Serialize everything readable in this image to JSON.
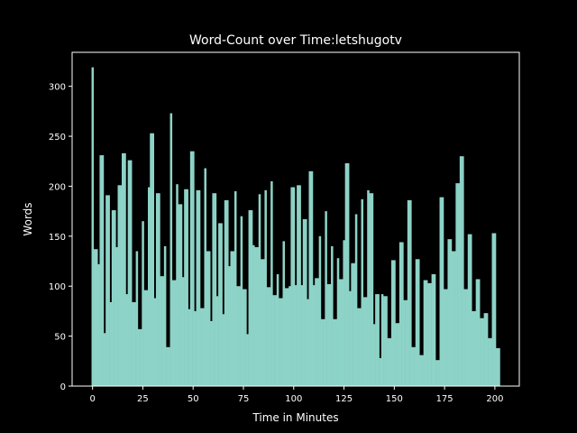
{
  "chart_data": {
    "type": "bar",
    "title": "Word-Count over Time:letshugotv",
    "xlabel": "Time in Minutes",
    "ylabel": "Words",
    "color": "#8dd3c7",
    "x": [
      0,
      1,
      2,
      3,
      4,
      5,
      6,
      7,
      8,
      9,
      10,
      11,
      12,
      13,
      14,
      15,
      16,
      17,
      18,
      19,
      20,
      21,
      22,
      23,
      24,
      25,
      26,
      27,
      28,
      29,
      30,
      31,
      32,
      33,
      34,
      35,
      36,
      37,
      38,
      39,
      40,
      41,
      42,
      43,
      44,
      45,
      46,
      47,
      48,
      49,
      50,
      51,
      52,
      53,
      54,
      55,
      56,
      57,
      58,
      59,
      60,
      61,
      62,
      63,
      64,
      65,
      66,
      67,
      68,
      69,
      70,
      71,
      72,
      73,
      74,
      75,
      76,
      77,
      78,
      79,
      80,
      81,
      82,
      83,
      84,
      85,
      86,
      87,
      88,
      89,
      90,
      91,
      92,
      93,
      94,
      95,
      96,
      97,
      98,
      99,
      100,
      101,
      102,
      103,
      104,
      105,
      106,
      107,
      108,
      109,
      110,
      111,
      112,
      113,
      114,
      115,
      116,
      117,
      118,
      119,
      120,
      121,
      122,
      123,
      124,
      125,
      126,
      127,
      128,
      129,
      130,
      131,
      132,
      133,
      134,
      135,
      136,
      137,
      138,
      139,
      140,
      141,
      142,
      143,
      144,
      145,
      146,
      147,
      148,
      149,
      150,
      151,
      152,
      153,
      154,
      155,
      156,
      157,
      158,
      159,
      160,
      161,
      162,
      163,
      164,
      165,
      166,
      167,
      168,
      169,
      170,
      171,
      172,
      173,
      174,
      175,
      176,
      177,
      178,
      179,
      180,
      181,
      182,
      183,
      184,
      185,
      186,
      187,
      188,
      189,
      190,
      191,
      192,
      193,
      194,
      195,
      196,
      197,
      198,
      199,
      200,
      201,
      202
    ],
    "values": [
      319,
      137,
      137,
      122,
      231,
      231,
      53,
      191,
      191,
      84,
      176,
      176,
      139,
      201,
      201,
      233,
      233,
      92,
      226,
      226,
      84,
      84,
      135,
      57,
      57,
      165,
      96,
      96,
      199,
      253,
      253,
      88,
      193,
      193,
      110,
      110,
      140,
      39,
      39,
      273,
      106,
      106,
      202,
      182,
      182,
      109,
      197,
      197,
      77,
      235,
      235,
      75,
      196,
      196,
      78,
      78,
      218,
      135,
      135,
      65,
      193,
      193,
      90,
      163,
      163,
      72,
      186,
      186,
      120,
      135,
      135,
      195,
      100,
      100,
      170,
      97,
      97,
      52,
      176,
      176,
      141,
      139,
      139,
      192,
      127,
      127,
      196,
      99,
      99,
      205,
      91,
      91,
      112,
      88,
      88,
      145,
      98,
      98,
      100,
      199,
      199,
      101,
      201,
      201,
      101,
      167,
      167,
      87,
      215,
      215,
      101,
      108,
      108,
      150,
      67,
      67,
      175,
      102,
      102,
      140,
      67,
      67,
      128,
      107,
      107,
      146,
      223,
      223,
      95,
      123,
      123,
      172,
      78,
      78,
      187,
      89,
      89,
      196,
      193,
      193,
      62,
      92,
      92,
      28,
      92,
      90,
      90,
      48,
      48,
      126,
      126,
      63,
      63,
      144,
      144,
      86,
      86,
      186,
      186,
      39,
      39,
      127,
      127,
      31,
      31,
      106,
      106,
      103,
      103,
      112,
      112,
      26,
      26,
      189,
      189,
      97,
      97,
      147,
      147,
      135,
      135,
      203,
      203,
      230,
      230,
      97,
      97,
      152,
      152,
      75,
      75,
      107,
      107,
      68,
      68,
      73,
      73,
      48,
      48,
      153,
      153,
      38,
      38
    ],
    "xlim": [
      -10.15,
      212.15
    ],
    "ylim": [
      0,
      334
    ],
    "xticks": [
      0,
      25,
      50,
      75,
      100,
      125,
      150,
      175,
      200
    ],
    "yticks": [
      0,
      50,
      100,
      150,
      200,
      250,
      300
    ]
  }
}
